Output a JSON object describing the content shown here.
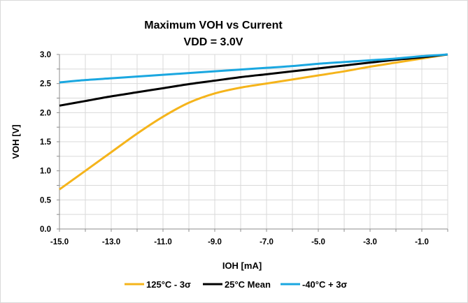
{
  "chart_data": {
    "type": "line",
    "title_line1": "Maximum VOH vs Current",
    "title_line2": "VDD = 3.0V",
    "xlabel": "IOH [mA]",
    "ylabel": "VOH [V]",
    "xlim": [
      -15,
      0
    ],
    "ylim": [
      0,
      3
    ],
    "x_ticks": [
      "-15.0",
      "-13.0",
      "-11.0",
      "-9.0",
      "-7.0",
      "-5.0",
      "-3.0",
      "-1.0"
    ],
    "x_tick_values": [
      -15,
      -13,
      -11,
      -9,
      -7,
      -5,
      -3,
      -1
    ],
    "y_ticks": [
      "0.0",
      "0.5",
      "1.0",
      "1.5",
      "2.0",
      "2.5",
      "3.0"
    ],
    "y_tick_values": [
      0,
      0.5,
      1.0,
      1.5,
      2.0,
      2.5,
      3.0
    ],
    "grid": true,
    "legend_position": "bottom",
    "series": [
      {
        "name": "125°C - 3σ",
        "color": "#f5b41b",
        "x": [
          -15,
          -14,
          -13,
          -12,
          -11,
          -10,
          -9,
          -8,
          -7,
          -6,
          -5,
          -4,
          -3,
          -2,
          -1,
          0
        ],
        "y": [
          0.68,
          1.0,
          1.32,
          1.64,
          1.93,
          2.17,
          2.33,
          2.43,
          2.5,
          2.57,
          2.64,
          2.71,
          2.79,
          2.86,
          2.93,
          3.0
        ]
      },
      {
        "name": "25°C Mean",
        "color": "#000000",
        "x": [
          -15,
          -14,
          -13,
          -12,
          -11,
          -10,
          -9,
          -8,
          -7,
          -6,
          -5,
          -4,
          -3,
          -2,
          -1,
          0
        ],
        "y": [
          2.12,
          2.2,
          2.28,
          2.35,
          2.42,
          2.49,
          2.55,
          2.61,
          2.66,
          2.71,
          2.76,
          2.81,
          2.86,
          2.91,
          2.95,
          3.0
        ]
      },
      {
        "name": "-40°C + 3σ",
        "color": "#1aa7e0",
        "x": [
          -15,
          -14,
          -13,
          -12,
          -11,
          -10,
          -9,
          -8,
          -7,
          -6,
          -5,
          -4,
          -3,
          -2,
          -1,
          0
        ],
        "y": [
          2.52,
          2.56,
          2.59,
          2.62,
          2.65,
          2.68,
          2.71,
          2.74,
          2.77,
          2.8,
          2.84,
          2.87,
          2.9,
          2.93,
          2.97,
          3.0
        ]
      }
    ]
  }
}
